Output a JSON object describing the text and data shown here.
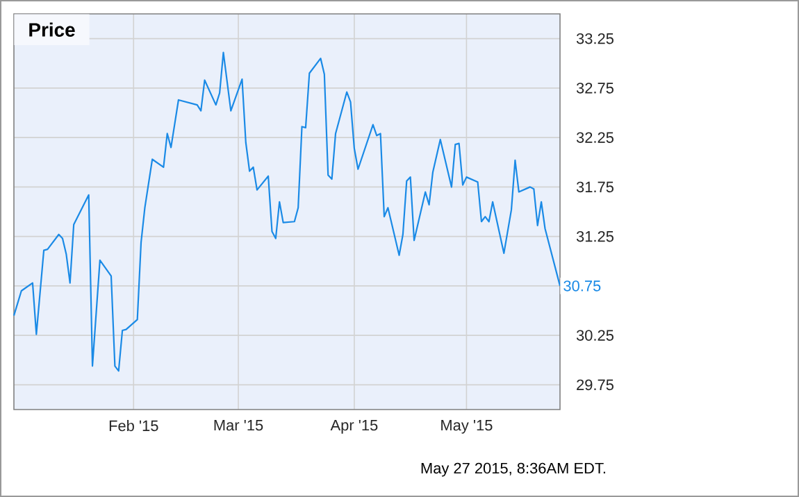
{
  "chart_data": {
    "type": "line",
    "title": "Price",
    "color": "#1a8ae6",
    "grid": true,
    "annotations": [
      "May 27 2015, 8:36AM EDT."
    ],
    "xlim": [
      "2014-12-31",
      "2015-05-26"
    ],
    "ylim": [
      29.5,
      33.5
    ],
    "xticks": [
      {
        "value": "2015-02-01",
        "label": "Feb '15"
      },
      {
        "value": "2015-03-01",
        "label": "Mar '15"
      },
      {
        "value": "2015-04-01",
        "label": "Apr '15"
      },
      {
        "value": "2015-05-01",
        "label": "May '15"
      }
    ],
    "yticks": [
      29.75,
      30.25,
      {
        "value": 30.75,
        "label": null
      },
      31.25,
      31.75,
      32.25,
      32.75,
      33.25
    ],
    "x": [
      "2014-12-31",
      "2015-01-02",
      "2015-01-05",
      "2015-01-06",
      "2015-01-08",
      "2015-01-09",
      "2015-01-12",
      "2015-01-13",
      "2015-01-14",
      "2015-01-15",
      "2015-01-16",
      "2015-01-20",
      "2015-01-21",
      "2015-01-23",
      "2015-01-26",
      "2015-01-27",
      "2015-01-28",
      "2015-01-29",
      "2015-01-30",
      "2015-02-02",
      "2015-02-03",
      "2015-02-04",
      "2015-02-06",
      "2015-02-09",
      "2015-02-10",
      "2015-02-11",
      "2015-02-13",
      "2015-02-18",
      "2015-02-19",
      "2015-02-20",
      "2015-02-23",
      "2015-02-24",
      "2015-02-25",
      "2015-02-27",
      "2015-03-02",
      "2015-03-03",
      "2015-03-04",
      "2015-03-05",
      "2015-03-06",
      "2015-03-09",
      "2015-03-10",
      "2015-03-11",
      "2015-03-12",
      "2015-03-13",
      "2015-03-16",
      "2015-03-17",
      "2015-03-18",
      "2015-03-19",
      "2015-03-20",
      "2015-03-23",
      "2015-03-24",
      "2015-03-25",
      "2015-03-26",
      "2015-03-27",
      "2015-03-30",
      "2015-03-31",
      "2015-04-01",
      "2015-04-02",
      "2015-04-06",
      "2015-04-07",
      "2015-04-08",
      "2015-04-09",
      "2015-04-10",
      "2015-04-13",
      "2015-04-14",
      "2015-04-15",
      "2015-04-16",
      "2015-04-17",
      "2015-04-20",
      "2015-04-21",
      "2015-04-22",
      "2015-04-24",
      "2015-04-27",
      "2015-04-28",
      "2015-04-29",
      "2015-04-30",
      "2015-05-01",
      "2015-05-04",
      "2015-05-05",
      "2015-05-06",
      "2015-05-07",
      "2015-05-08",
      "2015-05-11",
      "2015-05-13",
      "2015-05-14",
      "2015-05-15",
      "2015-05-18",
      "2015-05-19",
      "2015-05-20",
      "2015-05-21",
      "2015-05-22",
      "2015-05-26"
    ],
    "values": [
      30.45,
      30.7,
      30.78,
      30.26,
      31.11,
      31.12,
      31.27,
      31.23,
      31.07,
      30.78,
      31.37,
      31.67,
      29.94,
      31.01,
      30.85,
      29.94,
      29.89,
      30.3,
      30.31,
      30.41,
      31.19,
      31.54,
      32.03,
      31.95,
      32.29,
      32.15,
      32.63,
      32.58,
      32.52,
      32.83,
      32.58,
      32.7,
      33.11,
      32.52,
      32.84,
      32.2,
      31.91,
      31.95,
      31.72,
      31.86,
      31.3,
      31.23,
      31.6,
      31.39,
      31.4,
      31.54,
      32.36,
      32.35,
      32.9,
      33.05,
      32.89,
      31.87,
      31.83,
      32.29,
      32.71,
      32.61,
      32.14,
      31.93,
      32.38,
      32.27,
      32.29,
      31.45,
      31.54,
      31.06,
      31.27,
      31.81,
      31.85,
      31.21,
      31.7,
      31.57,
      31.9,
      32.23,
      31.75,
      32.18,
      32.19,
      31.77,
      31.85,
      31.8,
      31.4,
      31.45,
      31.4,
      31.6,
      31.08,
      31.52,
      32.02,
      31.7,
      31.75,
      31.73,
      31.36,
      31.6,
      31.33,
      30.75
    ],
    "value_labels": [
      null,
      null,
      null,
      null,
      null,
      null,
      null,
      null,
      null,
      null,
      null,
      null,
      null,
      null,
      null,
      null,
      null,
      null,
      null,
      null,
      null,
      null,
      null,
      null,
      null,
      null,
      null,
      null,
      null,
      null,
      null,
      null,
      null,
      null,
      null,
      null,
      null,
      null,
      null,
      null,
      null,
      null,
      null,
      null,
      null,
      null,
      null,
      null,
      null,
      null,
      null,
      null,
      null,
      null,
      null,
      null,
      null,
      null,
      null,
      null,
      null,
      null,
      null,
      null,
      null,
      null,
      null,
      null,
      null,
      null,
      null,
      null,
      null,
      null,
      null,
      null,
      null,
      null,
      null,
      null,
      null,
      null,
      null,
      null,
      null,
      null,
      null,
      null,
      null,
      null,
      null,
      "30.75"
    ]
  }
}
